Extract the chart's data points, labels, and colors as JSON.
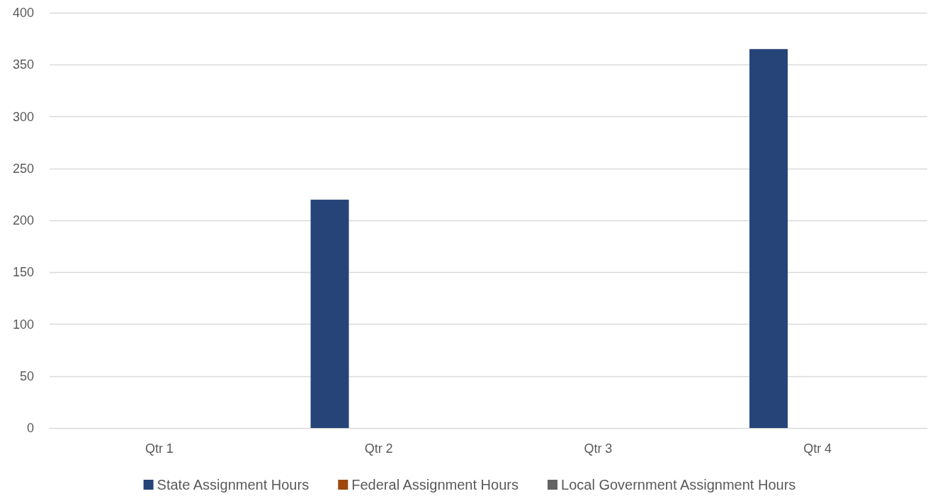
{
  "chart_data": {
    "type": "bar",
    "categories": [
      "Qtr 1",
      "Qtr 2",
      "Qtr 3",
      "Qtr 4"
    ],
    "series": [
      {
        "name": "State Assignment Hours",
        "color": "#264478",
        "values": [
          0,
          220,
          0,
          365
        ]
      },
      {
        "name": "Federal Assignment Hours",
        "color": "#9e480e",
        "values": [
          0,
          0,
          0,
          0
        ]
      },
      {
        "name": "Local Government Assignment Hours",
        "color": "#636363",
        "values": [
          0,
          0,
          0,
          0
        ]
      }
    ],
    "ylim": [
      0,
      400
    ],
    "yticks": [
      0,
      50,
      100,
      150,
      200,
      250,
      300,
      350,
      400
    ],
    "grid": "y",
    "legend": "bottom"
  }
}
